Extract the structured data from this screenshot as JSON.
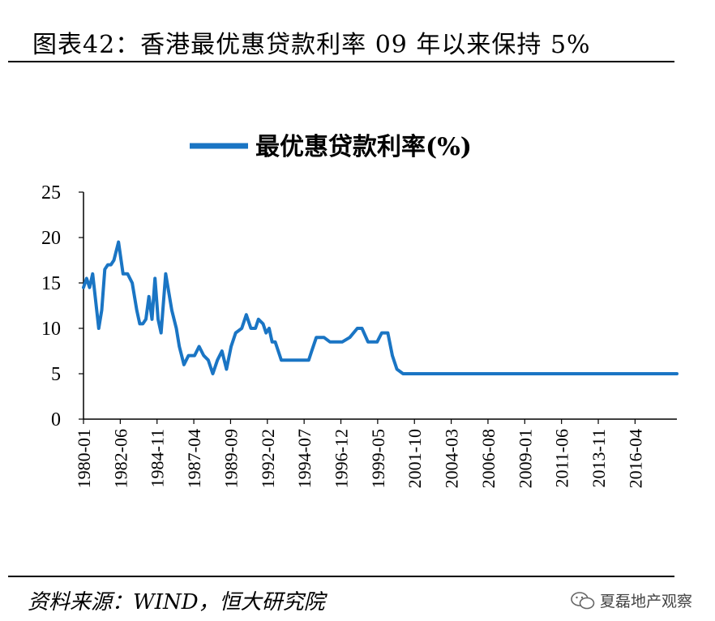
{
  "header": {
    "title": "图表42：香港最优惠贷款利率 09 年以来保持 5%"
  },
  "footer": {
    "source": "资料来源：WIND，恒大研究院",
    "watermark": "夏磊地产观察"
  },
  "colors": {
    "series": "#1a75c4",
    "axis": "#000000"
  },
  "chart_data": {
    "type": "line",
    "title": "",
    "xlabel": "",
    "ylabel": "",
    "ylim": [
      0,
      25
    ],
    "yticks": [
      0,
      5,
      10,
      15,
      20,
      25
    ],
    "xlim": [
      1980.0,
      2019.0
    ],
    "xtick_labels": [
      "1980-01",
      "1982-06",
      "1984-11",
      "1987-04",
      "1989-09",
      "1992-02",
      "1994-07",
      "1996-12",
      "1999-05",
      "2001-10",
      "2004-03",
      "2006-08",
      "2009-01",
      "2011-06",
      "2013-11",
      "2016-04"
    ],
    "legend": {
      "position": "top-center"
    },
    "series": [
      {
        "name": "最优惠贷款利率(%)",
        "x": [
          1980.0,
          1980.2,
          1980.4,
          1980.6,
          1981.0,
          1981.2,
          1981.4,
          1981.6,
          1981.8,
          1982.0,
          1982.3,
          1982.6,
          1982.9,
          1983.2,
          1983.5,
          1983.7,
          1983.9,
          1984.1,
          1984.3,
          1984.5,
          1984.7,
          1984.9,
          1985.1,
          1985.4,
          1985.8,
          1986.1,
          1986.3,
          1986.6,
          1986.9,
          1987.0,
          1987.3,
          1987.6,
          1987.9,
          1988.2,
          1988.5,
          1988.8,
          1989.1,
          1989.4,
          1989.7,
          1990.0,
          1990.4,
          1990.7,
          1991.0,
          1991.3,
          1991.5,
          1991.8,
          1992.0,
          1992.2,
          1992.4,
          1992.6,
          1993.0,
          1993.5,
          1994.0,
          1994.5,
          1994.8,
          1995.0,
          1995.3,
          1995.8,
          1996.2,
          1996.6,
          1997.0,
          1997.5,
          1998.0,
          1998.3,
          1998.7,
          1999.0,
          1999.3,
          1999.6,
          2000.0,
          2000.3,
          2000.6,
          2001.0,
          2001.3,
          2001.7,
          2002.0,
          2002.5,
          2003.0,
          2003.5,
          2004.0,
          2004.5,
          2004.9,
          2005.1,
          2005.4,
          2005.7,
          2006.0,
          2006.3,
          2006.6,
          2007.0,
          2007.4,
          2007.8,
          2008.1,
          2008.4,
          2008.7,
          2008.9,
          2009.2,
          2010,
          2012,
          2014,
          2016,
          2018,
          2019.0
        ],
        "y": [
          14.5,
          15.5,
          14.5,
          16.0,
          10.0,
          12.0,
          16.5,
          17.0,
          17.0,
          17.5,
          19.5,
          16.0,
          16.0,
          15.0,
          12.0,
          10.5,
          10.5,
          11.0,
          13.5,
          11.0,
          15.5,
          11.0,
          9.5,
          16.0,
          12.0,
          10.0,
          8.0,
          6.0,
          7.0,
          7.0,
          7.0,
          8.0,
          7.0,
          6.5,
          5.0,
          6.5,
          7.5,
          5.5,
          8.0,
          9.5,
          10.0,
          11.5,
          10.0,
          10.0,
          11.0,
          10.5,
          9.5,
          10.0,
          8.5,
          8.5,
          6.5,
          6.5,
          6.5,
          6.5,
          6.5,
          7.5,
          9.0,
          9.0,
          8.5,
          8.5,
          8.5,
          9.0,
          10.0,
          10.0,
          8.5,
          8.5,
          8.5,
          9.5,
          9.5,
          7.0,
          5.5,
          5.0,
          5.0,
          5.0,
          5.0,
          5.0,
          5.0,
          5.0,
          5.0,
          5.0,
          5.0,
          5.0,
          5.0,
          5.0,
          5.0,
          5.0,
          5.0,
          5.0,
          5.0,
          5.0,
          5.0,
          5.0,
          5.0,
          5.0,
          5.0,
          5.0,
          5.0,
          5.0,
          5.0,
          5.0,
          5.0
        ]
      }
    ]
  }
}
